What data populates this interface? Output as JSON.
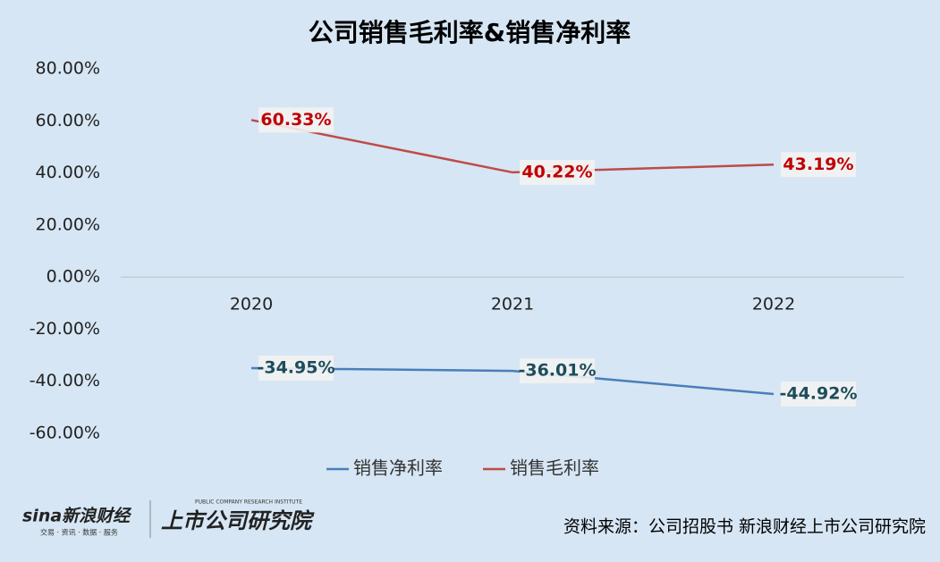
{
  "chart_data": {
    "type": "line",
    "title": "公司销售毛利率&销售净利率",
    "categories": [
      "2020",
      "2021",
      "2022"
    ],
    "series": [
      {
        "name": "销售净利率",
        "color": "#4a7ebb",
        "values": [
          -34.95,
          -36.01,
          -44.92
        ],
        "value_labels": [
          "-34.95%",
          "-36.01%",
          "-44.92%"
        ]
      },
      {
        "name": "销售毛利率",
        "color": "#be4b48",
        "values": [
          60.33,
          40.22,
          43.19
        ],
        "value_labels": [
          "60.33%",
          "40.22%",
          "43.19%"
        ]
      }
    ],
    "ylim": [
      -60,
      80
    ],
    "yticks": [
      {
        "value": -60,
        "label": "-60.00%"
      },
      {
        "value": -40,
        "label": "-40.00%"
      },
      {
        "value": -20,
        "label": "-20.00%"
      },
      {
        "value": 0,
        "label": "0.00%"
      },
      {
        "value": 20,
        "label": "20.00%"
      },
      {
        "value": 40,
        "label": "40.00%"
      },
      {
        "value": 60,
        "label": "60.00%"
      },
      {
        "value": 80,
        "label": "80.00%"
      }
    ],
    "grid": false,
    "legend": "bottom",
    "source": "资料来源：公司招股书 新浪财经上市公司研究院",
    "logos": [
      "sina新浪财经",
      "交易 · 资讯 · 数据 · 服务",
      "上市公司研究院",
      "PUBLIC COMPANY RESEARCH INSTITUTE"
    ]
  }
}
